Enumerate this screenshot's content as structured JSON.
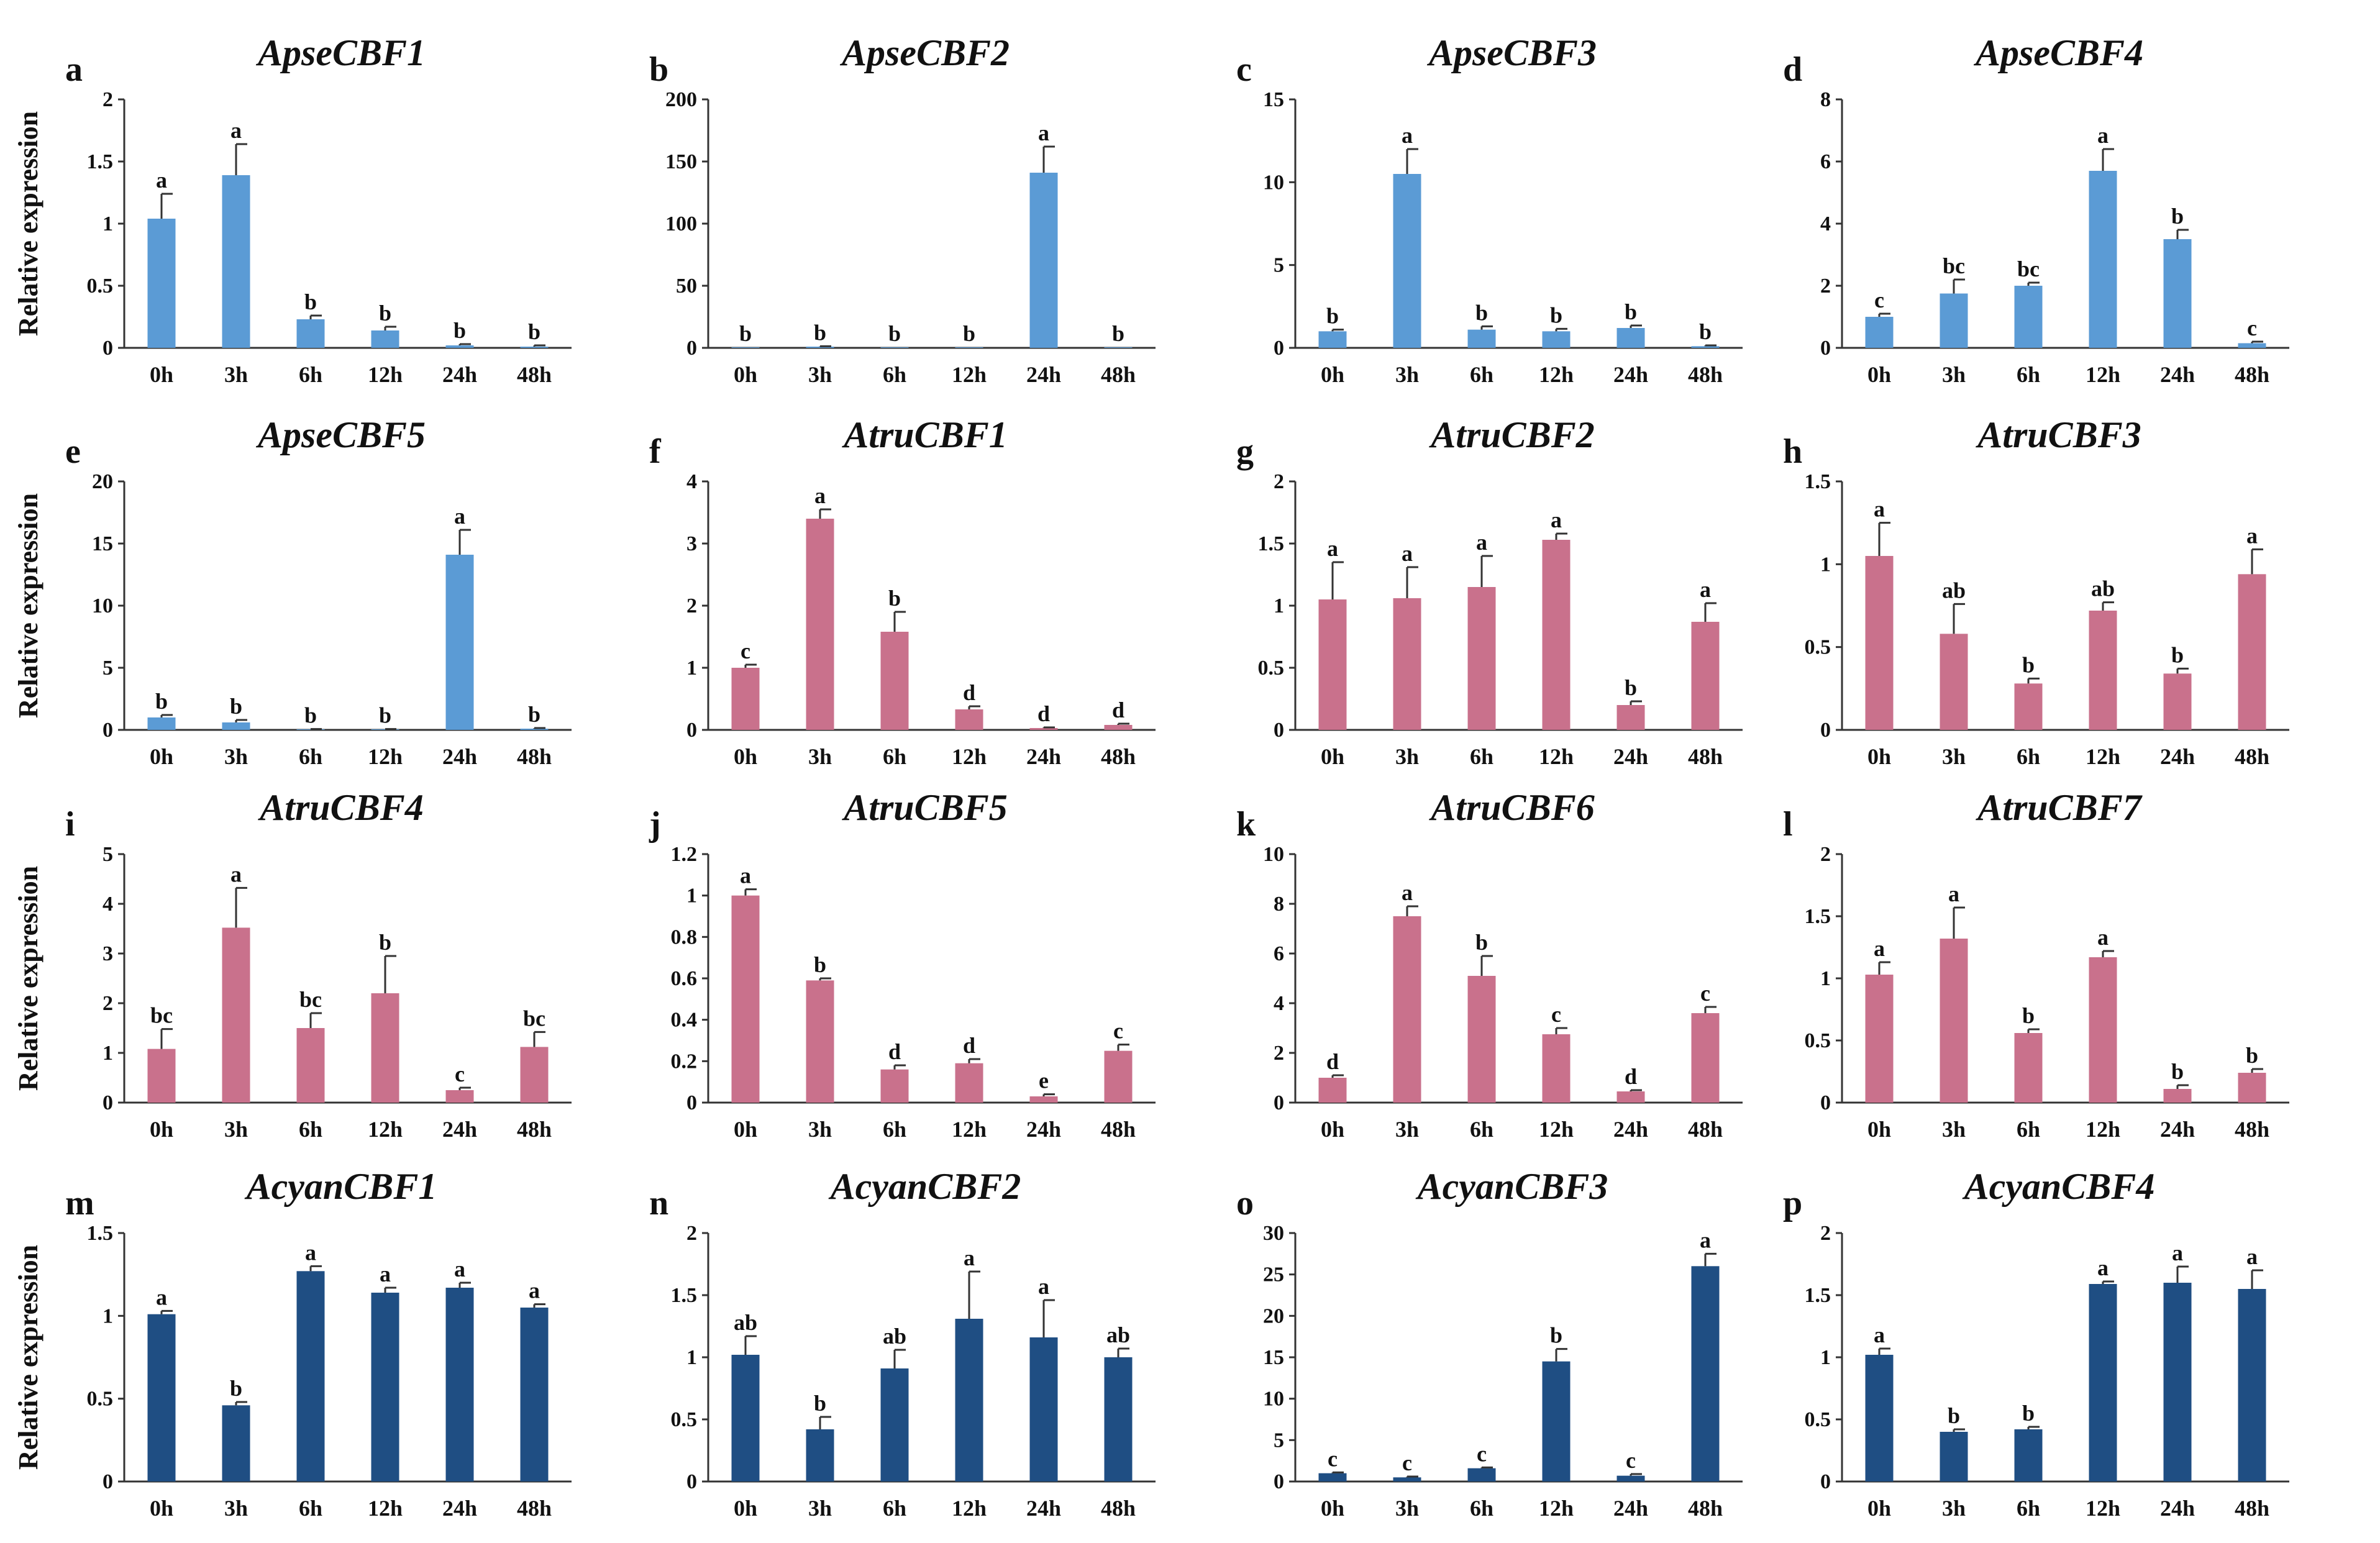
{
  "y_axis_title": "Relative expression",
  "colors": {
    "blue": "#5b9bd5",
    "pink": "#c9718c",
    "navy": "#1f4e83",
    "axis": "#333333"
  },
  "chart_data": [
    {
      "letter": "a",
      "title": "ApseCBF1",
      "type": "bar",
      "color": "blue",
      "categories": [
        "0h",
        "3h",
        "6h",
        "12h",
        "24h",
        "48h"
      ],
      "values": [
        1.04,
        1.39,
        0.23,
        0.14,
        0.02,
        0.01
      ],
      "errors": [
        0.2,
        0.25,
        0.03,
        0.03,
        0.01,
        0.01
      ],
      "letters": [
        "a",
        "a",
        "b",
        "b",
        "b",
        "b"
      ],
      "ylim": [
        0,
        2
      ],
      "yticks": [
        {
          "v": 0,
          "t": "0"
        },
        {
          "v": 0.5,
          "t": "0.5"
        },
        {
          "v": 1,
          "t": "1"
        },
        {
          "v": 1.5,
          "t": "1.5"
        },
        {
          "v": 2,
          "t": "2"
        }
      ]
    },
    {
      "letter": "b",
      "title": "ApseCBF2",
      "type": "bar",
      "color": "blue",
      "categories": [
        "0h",
        "3h",
        "6h",
        "12h",
        "24h",
        "48h"
      ],
      "values": [
        0.5,
        1,
        0.5,
        0.5,
        141,
        0.5
      ],
      "errors": [
        0,
        0.3,
        0,
        0,
        21,
        0
      ],
      "letters": [
        "b",
        "b",
        "b",
        "b",
        "a",
        "b"
      ],
      "ylim": [
        0,
        200
      ],
      "yticks": [
        {
          "v": 0,
          "t": "0"
        },
        {
          "v": 50,
          "t": "50"
        },
        {
          "v": 100,
          "t": "100"
        },
        {
          "v": 150,
          "t": "150"
        },
        {
          "v": 200,
          "t": "200"
        }
      ]
    },
    {
      "letter": "c",
      "title": "ApseCBF3",
      "type": "bar",
      "color": "blue",
      "categories": [
        "0h",
        "3h",
        "6h",
        "12h",
        "24h",
        "48h"
      ],
      "values": [
        1.0,
        10.5,
        1.1,
        1.0,
        1.2,
        0.1
      ],
      "errors": [
        0.1,
        1.5,
        0.2,
        0.15,
        0.15,
        0.05
      ],
      "letters": [
        "b",
        "a",
        "b",
        "b",
        "b",
        "b"
      ],
      "ylim": [
        0,
        15
      ],
      "yticks": [
        {
          "v": 0,
          "t": "0"
        },
        {
          "v": 5,
          "t": "5"
        },
        {
          "v": 10,
          "t": "10"
        },
        {
          "v": 15,
          "t": "15"
        }
      ]
    },
    {
      "letter": "d",
      "title": "ApseCBF4",
      "type": "bar",
      "color": "blue",
      "categories": [
        "0h",
        "3h",
        "6h",
        "12h",
        "24h",
        "48h"
      ],
      "values": [
        1.0,
        1.75,
        2.0,
        5.7,
        3.5,
        0.15
      ],
      "errors": [
        0.1,
        0.45,
        0.1,
        0.7,
        0.3,
        0.05
      ],
      "letters": [
        "c",
        "bc",
        "bc",
        "a",
        "b",
        "c"
      ],
      "ylim": [
        0,
        8
      ],
      "yticks": [
        {
          "v": 0,
          "t": "0"
        },
        {
          "v": 2,
          "t": "2"
        },
        {
          "v": 4,
          "t": "4"
        },
        {
          "v": 6,
          "t": "6"
        },
        {
          "v": 8,
          "t": "8"
        }
      ]
    },
    {
      "letter": "e",
      "title": "ApseCBF5",
      "type": "bar",
      "color": "blue",
      "categories": [
        "0h",
        "3h",
        "6h",
        "12h",
        "24h",
        "48h"
      ],
      "values": [
        1.0,
        0.6,
        0.05,
        0.05,
        14.1,
        0.1
      ],
      "errors": [
        0.2,
        0.2,
        0.02,
        0.02,
        2.0,
        0.05
      ],
      "letters": [
        "b",
        "b",
        "b",
        "b",
        "a",
        "b"
      ],
      "ylim": [
        0,
        20
      ],
      "yticks": [
        {
          "v": 0,
          "t": "0"
        },
        {
          "v": 5,
          "t": "5"
        },
        {
          "v": 10,
          "t": "10"
        },
        {
          "v": 15,
          "t": "15"
        },
        {
          "v": 20,
          "t": "20"
        }
      ]
    },
    {
      "letter": "f",
      "title": "AtruCBF1",
      "type": "bar",
      "color": "pink",
      "categories": [
        "0h",
        "3h",
        "6h",
        "12h",
        "24h",
        "48h"
      ],
      "values": [
        1.0,
        3.4,
        1.58,
        0.33,
        0.03,
        0.08
      ],
      "errors": [
        0.05,
        0.15,
        0.32,
        0.05,
        0.01,
        0.02
      ],
      "letters": [
        "c",
        "a",
        "b",
        "d",
        "d",
        "d"
      ],
      "ylim": [
        0,
        4
      ],
      "yticks": [
        {
          "v": 0,
          "t": "0"
        },
        {
          "v": 1,
          "t": "1"
        },
        {
          "v": 2,
          "t": "2"
        },
        {
          "v": 3,
          "t": "3"
        },
        {
          "v": 4,
          "t": "4"
        }
      ]
    },
    {
      "letter": "g",
      "title": "AtruCBF2",
      "type": "bar",
      "color": "pink",
      "categories": [
        "0h",
        "3h",
        "6h",
        "12h",
        "24h",
        "48h"
      ],
      "values": [
        1.05,
        1.06,
        1.15,
        1.53,
        0.2,
        0.87
      ],
      "errors": [
        0.3,
        0.25,
        0.25,
        0.05,
        0.03,
        0.15
      ],
      "letters": [
        "a",
        "a",
        "a",
        "a",
        "b",
        "a"
      ],
      "ylim": [
        0,
        2
      ],
      "yticks": [
        {
          "v": 0,
          "t": "0"
        },
        {
          "v": 0.5,
          "t": "0.5"
        },
        {
          "v": 1,
          "t": "1"
        },
        {
          "v": 1.5,
          "t": "1.5"
        },
        {
          "v": 2,
          "t": "2"
        }
      ]
    },
    {
      "letter": "h",
      "title": "AtruCBF3",
      "type": "bar",
      "color": "pink",
      "categories": [
        "0h",
        "3h",
        "6h",
        "12h",
        "24h",
        "48h"
      ],
      "values": [
        1.05,
        0.58,
        0.28,
        0.72,
        0.34,
        0.94
      ],
      "errors": [
        0.2,
        0.18,
        0.03,
        0.05,
        0.03,
        0.15
      ],
      "letters": [
        "a",
        "ab",
        "b",
        "ab",
        "b",
        "a"
      ],
      "ylim": [
        0,
        1.5
      ],
      "yticks": [
        {
          "v": 0,
          "t": "0"
        },
        {
          "v": 0.5,
          "t": "0.5"
        },
        {
          "v": 1,
          "t": "1"
        },
        {
          "v": 1.5,
          "t": "1.5"
        }
      ]
    },
    {
      "letter": "i",
      "title": "AtruCBF4",
      "type": "bar",
      "color": "pink",
      "categories": [
        "0h",
        "3h",
        "6h",
        "12h",
        "24h",
        "48h"
      ],
      "values": [
        1.08,
        3.52,
        1.5,
        2.2,
        0.25,
        1.12
      ],
      "errors": [
        0.4,
        0.8,
        0.3,
        0.75,
        0.05,
        0.3
      ],
      "letters": [
        "bc",
        "a",
        "bc",
        "b",
        "c",
        "bc"
      ],
      "ylim": [
        0,
        5
      ],
      "yticks": [
        {
          "v": 0,
          "t": "0"
        },
        {
          "v": 1,
          "t": "1"
        },
        {
          "v": 2,
          "t": "2"
        },
        {
          "v": 3,
          "t": "3"
        },
        {
          "v": 4,
          "t": "4"
        },
        {
          "v": 5,
          "t": "5"
        }
      ]
    },
    {
      "letter": "j",
      "title": "AtruCBF5",
      "type": "bar",
      "color": "pink",
      "categories": [
        "0h",
        "3h",
        "6h",
        "12h",
        "24h",
        "48h"
      ],
      "values": [
        1.0,
        0.59,
        0.16,
        0.19,
        0.03,
        0.25
      ],
      "errors": [
        0.03,
        0.01,
        0.02,
        0.02,
        0.01,
        0.03
      ],
      "letters": [
        "a",
        "b",
        "d",
        "d",
        "e",
        "c"
      ],
      "ylim": [
        0,
        1.2
      ],
      "yticks": [
        {
          "v": 0,
          "t": "0"
        },
        {
          "v": 0.2,
          "t": "0.2"
        },
        {
          "v": 0.4,
          "t": "0.4"
        },
        {
          "v": 0.6,
          "t": "0.6"
        },
        {
          "v": 0.8,
          "t": "0.8"
        },
        {
          "v": 1,
          "t": "1"
        },
        {
          "v": 1.2,
          "t": "1.2"
        }
      ]
    },
    {
      "letter": "k",
      "title": "AtruCBF6",
      "type": "bar",
      "color": "pink",
      "categories": [
        "0h",
        "3h",
        "6h",
        "12h",
        "24h",
        "48h"
      ],
      "values": [
        1.0,
        7.5,
        5.1,
        2.75,
        0.45,
        3.6
      ],
      "errors": [
        0.1,
        0.4,
        0.8,
        0.25,
        0.05,
        0.25
      ],
      "letters": [
        "d",
        "a",
        "b",
        "c",
        "d",
        "c"
      ],
      "ylim": [
        0,
        10
      ],
      "yticks": [
        {
          "v": 0,
          "t": "0"
        },
        {
          "v": 2,
          "t": "2"
        },
        {
          "v": 4,
          "t": "4"
        },
        {
          "v": 6,
          "t": "6"
        },
        {
          "v": 8,
          "t": "8"
        },
        {
          "v": 10,
          "t": "10"
        }
      ]
    },
    {
      "letter": "l",
      "title": "AtruCBF7",
      "type": "bar",
      "color": "pink",
      "categories": [
        "0h",
        "3h",
        "6h",
        "12h",
        "24h",
        "48h"
      ],
      "values": [
        1.03,
        1.32,
        0.56,
        1.17,
        0.11,
        0.24
      ],
      "errors": [
        0.1,
        0.25,
        0.03,
        0.05,
        0.03,
        0.03
      ],
      "letters": [
        "a",
        "a",
        "b",
        "a",
        "b",
        "b"
      ],
      "ylim": [
        0,
        2
      ],
      "yticks": [
        {
          "v": 0,
          "t": "0"
        },
        {
          "v": 0.5,
          "t": "0.5"
        },
        {
          "v": 1,
          "t": "1"
        },
        {
          "v": 1.5,
          "t": "1.5"
        },
        {
          "v": 2,
          "t": "2"
        }
      ]
    },
    {
      "letter": "m",
      "title": "AcyanCBF1",
      "type": "bar",
      "color": "navy",
      "categories": [
        "0h",
        "3h",
        "6h",
        "12h",
        "24h",
        "48h"
      ],
      "values": [
        1.01,
        0.46,
        1.27,
        1.14,
        1.17,
        1.05
      ],
      "errors": [
        0.02,
        0.02,
        0.03,
        0.03,
        0.03,
        0.02
      ],
      "letters": [
        "a",
        "b",
        "a",
        "a",
        "a",
        "a"
      ],
      "ylim": [
        0,
        1.5
      ],
      "yticks": [
        {
          "v": 0,
          "t": "0"
        },
        {
          "v": 0.5,
          "t": "0.5"
        },
        {
          "v": 1,
          "t": "1"
        },
        {
          "v": 1.5,
          "t": "1.5"
        }
      ]
    },
    {
      "letter": "n",
      "title": "AcyanCBF2",
      "type": "bar",
      "color": "navy",
      "categories": [
        "0h",
        "3h",
        "6h",
        "12h",
        "24h",
        "48h"
      ],
      "values": [
        1.02,
        0.42,
        0.91,
        1.31,
        1.16,
        1.0
      ],
      "errors": [
        0.15,
        0.1,
        0.15,
        0.38,
        0.3,
        0.07
      ],
      "letters": [
        "ab",
        "b",
        "ab",
        "a",
        "a",
        "ab"
      ],
      "ylim": [
        0,
        2
      ],
      "yticks": [
        {
          "v": 0,
          "t": "0"
        },
        {
          "v": 0.5,
          "t": "0.5"
        },
        {
          "v": 1,
          "t": "1"
        },
        {
          "v": 1.5,
          "t": "1.5"
        },
        {
          "v": 2,
          "t": "2"
        }
      ]
    },
    {
      "letter": "o",
      "title": "AcyanCBF3",
      "type": "bar",
      "color": "navy",
      "categories": [
        "0h",
        "3h",
        "6h",
        "12h",
        "24h",
        "48h"
      ],
      "values": [
        1.0,
        0.5,
        1.6,
        14.5,
        0.7,
        26.0
      ],
      "errors": [
        0.1,
        0.1,
        0.1,
        1.5,
        0.2,
        1.5
      ],
      "letters": [
        "c",
        "c",
        "c",
        "b",
        "c",
        "a"
      ],
      "ylim": [
        0,
        30
      ],
      "yticks": [
        {
          "v": 0,
          "t": "0"
        },
        {
          "v": 5,
          "t": "5"
        },
        {
          "v": 10,
          "t": "10"
        },
        {
          "v": 15,
          "t": "15"
        },
        {
          "v": 20,
          "t": "20"
        },
        {
          "v": 25,
          "t": "25"
        },
        {
          "v": 30,
          "t": "30"
        }
      ]
    },
    {
      "letter": "p",
      "title": "AcyanCBF4",
      "type": "bar",
      "color": "navy",
      "categories": [
        "0h",
        "3h",
        "6h",
        "12h",
        "24h",
        "48h"
      ],
      "values": [
        1.02,
        0.4,
        0.42,
        1.59,
        1.6,
        1.55
      ],
      "errors": [
        0.05,
        0.02,
        0.02,
        0.02,
        0.13,
        0.15
      ],
      "letters": [
        "a",
        "b",
        "b",
        "a",
        "a",
        "a"
      ],
      "ylim": [
        0,
        2
      ],
      "yticks": [
        {
          "v": 0,
          "t": "0"
        },
        {
          "v": 0.5,
          "t": "0.5"
        },
        {
          "v": 1,
          "t": "1"
        },
        {
          "v": 1.5,
          "t": "1.5"
        },
        {
          "v": 2,
          "t": "2"
        }
      ]
    }
  ]
}
